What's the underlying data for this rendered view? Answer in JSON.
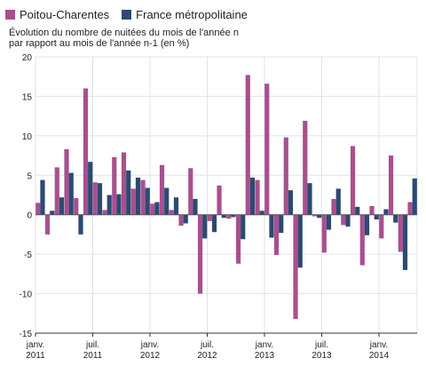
{
  "legend": [
    {
      "label": "Poitou-Charentes",
      "color": "#a8508f"
    },
    {
      "label": "France métropolitaine",
      "color": "#2c4a72"
    }
  ],
  "subtitle": {
    "line1": "Évolution du nombre de nuitées du mois de l'année n",
    "line2": "par rapport au mois de l'année n-1 (en %)"
  },
  "chart_data": {
    "type": "bar",
    "title": "",
    "xlabel": "",
    "ylabel": "",
    "ylim": [
      -15,
      20
    ],
    "yticks": [
      20,
      15,
      10,
      5,
      0,
      -5,
      -10,
      -15
    ],
    "grid": true,
    "legend_position": "top-left",
    "x_tick_labels": [
      {
        "index": 0,
        "line1": "janv.",
        "line2": "2011"
      },
      {
        "index": 6,
        "line1": "juil.",
        "line2": "2011"
      },
      {
        "index": 12,
        "line1": "janv.",
        "line2": "2012"
      },
      {
        "index": 18,
        "line1": "juil.",
        "line2": "2012"
      },
      {
        "index": 24,
        "line1": "janv.",
        "line2": "2013"
      },
      {
        "index": 30,
        "line1": "juil.",
        "line2": "2013"
      },
      {
        "index": 36,
        "line1": "janv.",
        "line2": "2014"
      }
    ],
    "series": [
      {
        "name": "Poitou-Charentes",
        "color": "#a8508f",
        "values": [
          1.5,
          -2.5,
          6.0,
          8.3,
          2.1,
          16.0,
          4.1,
          0.6,
          7.3,
          7.9,
          3.3,
          4.4,
          1.4,
          6.3,
          0.6,
          -1.4,
          5.9,
          -10.0,
          -0.8,
          3.7,
          -0.5,
          -6.2,
          17.7,
          4.4,
          16.6,
          -5.1,
          9.8,
          -13.2,
          11.9,
          -0.2,
          -4.8,
          2.0,
          -1.3,
          8.7,
          -6.4,
          1.1,
          -3.0,
          7.5,
          -4.7,
          1.6
        ]
      },
      {
        "name": "France métropolitaine",
        "color": "#2c4a72",
        "values": [
          4.4,
          0.5,
          2.2,
          5.3,
          -2.5,
          6.7,
          4.0,
          2.5,
          2.6,
          5.6,
          4.7,
          3.4,
          1.6,
          3.4,
          2.2,
          -1.1,
          2.0,
          -3.0,
          -2.2,
          -0.4,
          -0.3,
          -3.1,
          4.7,
          0.5,
          -2.9,
          -2.3,
          3.1,
          -6.7,
          4.0,
          -0.4,
          -1.9,
          3.3,
          -1.5,
          1.0,
          -2.6,
          -0.6,
          0.7,
          -1.0,
          -7.0,
          4.6
        ]
      }
    ]
  }
}
